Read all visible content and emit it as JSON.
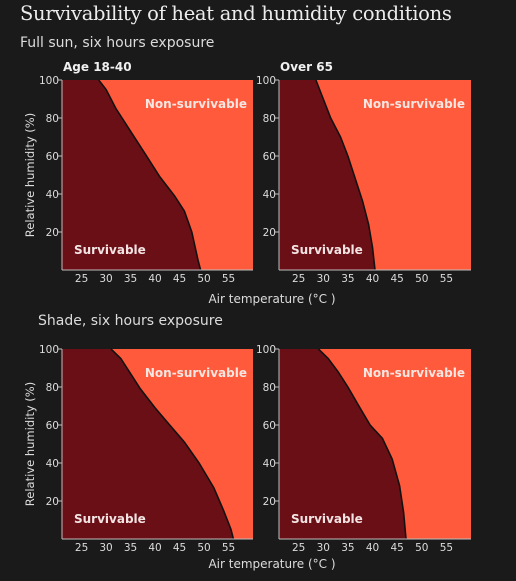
{
  "title": "Survivability of heat and humidity conditions",
  "sections": [
    {
      "subtitle": "Full sun, six hours exposure"
    },
    {
      "subtitle": "Shade, six hours exposure"
    }
  ],
  "colors": {
    "background": "#1a1a1a",
    "survivable": "#6b0f17",
    "non_survivable": "#ff5a3c",
    "boundary": "#111111",
    "text": "#dcdcdc"
  },
  "chart_data": [
    {
      "type": "area",
      "title": "Age 18-40",
      "exposure": "Full sun, six hours exposure",
      "xlabel": "",
      "ylabel": "Relative humidity (%)",
      "xlim": [
        21,
        60
      ],
      "ylim": [
        0,
        100
      ],
      "xticks": [
        25,
        30,
        35,
        40,
        45,
        50,
        55
      ],
      "yticks": [
        20,
        40,
        60,
        80,
        100
      ],
      "regions": [
        "Survivable",
        "Non-survivable"
      ],
      "boundary": [
        [
          28.5,
          100
        ],
        [
          30,
          95
        ],
        [
          32,
          85
        ],
        [
          35,
          73
        ],
        [
          38,
          61
        ],
        [
          41,
          49
        ],
        [
          44,
          39
        ],
        [
          46,
          31
        ],
        [
          47.5,
          20
        ],
        [
          48.8,
          5
        ],
        [
          49.3,
          0
        ]
      ]
    },
    {
      "type": "area",
      "title": "Over 65",
      "exposure": "Full sun, six hours exposure",
      "xlabel": "Air temperature (°C )",
      "ylabel": "",
      "xlim": [
        21,
        60
      ],
      "ylim": [
        0,
        100
      ],
      "xticks": [
        25,
        30,
        35,
        40,
        45,
        50,
        55
      ],
      "yticks": [
        20,
        40,
        60,
        80,
        100
      ],
      "regions": [
        "Survivable",
        "Non-survivable"
      ],
      "boundary": [
        [
          28.5,
          100
        ],
        [
          30,
          90
        ],
        [
          31.5,
          80
        ],
        [
          33.5,
          70
        ],
        [
          35,
          60
        ],
        [
          36.5,
          48
        ],
        [
          38,
          36
        ],
        [
          39.2,
          24
        ],
        [
          40,
          12
        ],
        [
          40.5,
          0
        ]
      ]
    },
    {
      "type": "area",
      "title": "",
      "exposure": "Shade, six hours exposure",
      "xlabel": "",
      "ylabel": "Relative humidity (%)",
      "xlim": [
        21,
        60
      ],
      "ylim": [
        0,
        100
      ],
      "xticks": [
        25,
        30,
        35,
        40,
        45,
        50,
        55
      ],
      "yticks": [
        20,
        40,
        60,
        80,
        100
      ],
      "regions": [
        "Survivable",
        "Non-survivable"
      ],
      "boundary": [
        [
          31,
          100
        ],
        [
          33,
          95
        ],
        [
          35,
          87
        ],
        [
          37,
          79
        ],
        [
          40,
          69
        ],
        [
          43,
          60
        ],
        [
          46,
          51
        ],
        [
          49,
          40
        ],
        [
          52,
          27
        ],
        [
          54,
          15
        ],
        [
          55.5,
          5
        ],
        [
          56,
          0
        ]
      ]
    },
    {
      "type": "area",
      "title": "",
      "exposure": "Shade, six hours exposure",
      "xlabel": "Air temperature (°C )",
      "ylabel": "",
      "xlim": [
        21,
        60
      ],
      "ylim": [
        0,
        100
      ],
      "xticks": [
        25,
        30,
        35,
        40,
        45,
        50,
        55
      ],
      "yticks": [
        20,
        40,
        60,
        80,
        100
      ],
      "regions": [
        "Survivable",
        "Non-survivable"
      ],
      "boundary": [
        [
          29,
          100
        ],
        [
          31,
          95
        ],
        [
          33,
          88
        ],
        [
          35,
          80
        ],
        [
          37,
          71
        ],
        [
          39.5,
          60
        ],
        [
          42,
          53
        ],
        [
          44,
          42
        ],
        [
          45.5,
          28
        ],
        [
          46.3,
          14
        ],
        [
          46.8,
          0
        ]
      ]
    }
  ]
}
